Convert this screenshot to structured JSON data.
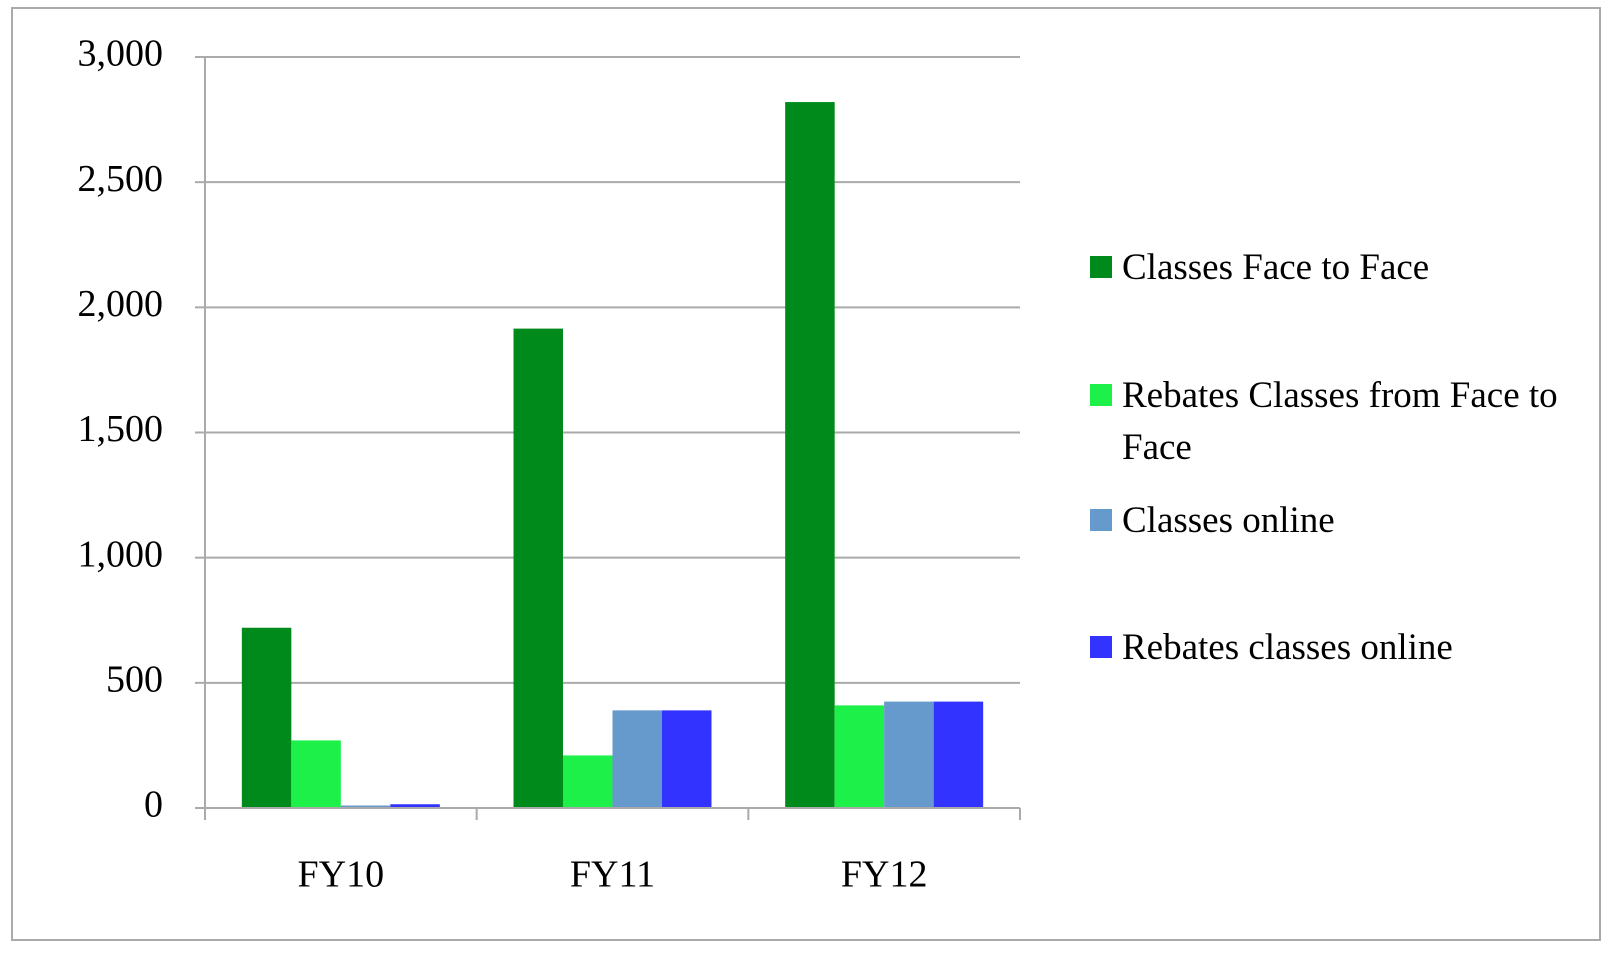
{
  "chart_data": {
    "type": "bar",
    "categories": [
      "FY10",
      "FY11",
      "FY12"
    ],
    "series": [
      {
        "name": "Classes Face to Face",
        "color": "#008a1c",
        "values": [
          720,
          1915,
          2820
        ]
      },
      {
        "name": "Rebates Classes from Face to Face",
        "color": "#1ef04a",
        "values": [
          270,
          210,
          410
        ]
      },
      {
        "name": "Classes online",
        "color": "#6699cc",
        "values": [
          10,
          390,
          425
        ]
      },
      {
        "name": "Rebates classes online",
        "color": "#3333ff",
        "values": [
          15,
          390,
          425
        ]
      }
    ],
    "ylim": [
      0,
      3000
    ],
    "yticks": [
      0,
      500,
      {
        "value": 1000,
        "label": "1,000"
      },
      {
        "value": 1500,
        "label": "1,500"
      },
      {
        "value": 2000,
        "label": "2,000"
      },
      {
        "value": 2500,
        "label": "2,500"
      },
      {
        "value": 3000,
        "label": "3,000"
      }
    ],
    "grid": true,
    "legend": "right"
  }
}
